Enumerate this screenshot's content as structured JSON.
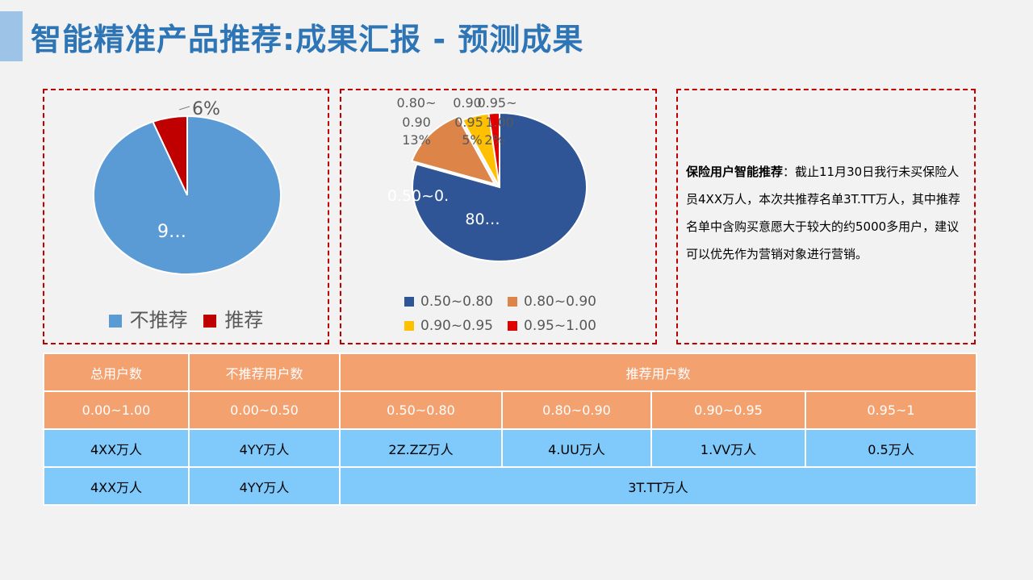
{
  "title": "智能精准产品推荐:成果汇报 - 预测成果",
  "pie1": {
    "label_small": "6%",
    "label_large": "9…",
    "legend": [
      {
        "label": "不推荐",
        "color": "#5b9bd5"
      },
      {
        "label": "推荐",
        "color": "#c00000"
      }
    ]
  },
  "pie2": {
    "label_main_1": "0.50~0.",
    "label_main_2": "80…",
    "label_b1": "0.80~",
    "label_b2": "0.90",
    "label_b3": "13%",
    "label_c1": "0.90",
    "label_c2": "0.95",
    "label_c3": "5%",
    "label_d1": "0.95~",
    "label_d2": "1.00",
    "label_d3": "2%",
    "legend": [
      {
        "label": "0.50~0.80",
        "color": "#2f5597"
      },
      {
        "label": "0.80~0.90",
        "color": "#dd8449"
      },
      {
        "label": "0.90~0.95",
        "color": "#ffc000"
      },
      {
        "label": "0.95~1.00",
        "color": "#e00000"
      }
    ]
  },
  "chart_data": [
    {
      "type": "pie",
      "categories": [
        "不推荐",
        "推荐"
      ],
      "values": [
        94,
        6
      ]
    },
    {
      "type": "pie",
      "categories": [
        "0.50~0.80",
        "0.80~0.90",
        "0.90~0.95",
        "0.95~1.00"
      ],
      "values": [
        80,
        13,
        5,
        2
      ]
    }
  ],
  "note": {
    "bold": "保险用户智能推荐",
    "text": "：截止11月30日我行未买保险人员4XX万人，本次共推荐名单3T.TT万人，其中推荐名单中含购买意愿大于较大的约5000多用户，建议可以优先作为营销对象进行营销。"
  },
  "table": {
    "header": [
      "总用户数",
      "不推荐用户数",
      "推荐用户数"
    ],
    "ranges": [
      "0.00~1.00",
      "0.00~0.50",
      "0.50~0.80",
      "0.80~0.90",
      "0.90~0.95",
      "0.95~1"
    ],
    "row1": [
      "4XX万人",
      "4YY万人",
      "2Z.ZZ万人",
      "4.UU万人",
      "1.VV万人",
      "0.5万人"
    ],
    "row2": [
      "4XX万人",
      "4YY万人",
      "3T.TT万人"
    ]
  }
}
